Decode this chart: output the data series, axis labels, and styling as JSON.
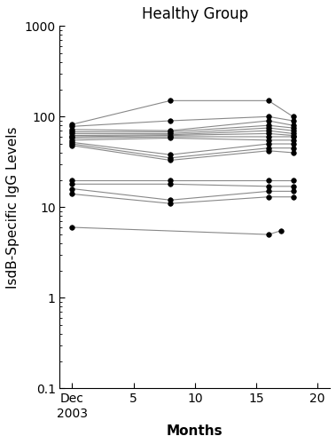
{
  "title": "Healthy Group",
  "xlabel": "Months",
  "ylabel": "IsdB-Specific IgG Levels",
  "xlim": [
    -1,
    21
  ],
  "ylim": [
    0.1,
    1000
  ],
  "background_color": "#ffffff",
  "subjects": [
    {
      "x": [
        0,
        16,
        17
      ],
      "y": [
        6.0,
        5.0,
        5.5
      ]
    },
    {
      "x": [
        0,
        8,
        16,
        18
      ],
      "y": [
        82,
        150,
        150,
        100
      ]
    },
    {
      "x": [
        0,
        8,
        16,
        18
      ],
      "y": [
        78,
        90,
        100,
        90
      ]
    },
    {
      "x": [
        0,
        8,
        16,
        18
      ],
      "y": [
        72,
        70,
        90,
        80
      ]
    },
    {
      "x": [
        0,
        8,
        16,
        18
      ],
      "y": [
        68,
        68,
        80,
        75
      ]
    },
    {
      "x": [
        0,
        8,
        16,
        18
      ],
      "y": [
        65,
        65,
        75,
        70
      ]
    },
    {
      "x": [
        0,
        8,
        16,
        18
      ],
      "y": [
        62,
        63,
        70,
        65
      ]
    },
    {
      "x": [
        0,
        8,
        16,
        18
      ],
      "y": [
        60,
        62,
        65,
        62
      ]
    },
    {
      "x": [
        0,
        8,
        16,
        18
      ],
      "y": [
        58,
        60,
        60,
        60
      ]
    },
    {
      "x": [
        0,
        8,
        16,
        18
      ],
      "y": [
        55,
        58,
        55,
        55
      ]
    },
    {
      "x": [
        0,
        8,
        16,
        18
      ],
      "y": [
        52,
        38,
        50,
        50
      ]
    },
    {
      "x": [
        0,
        8,
        16,
        18
      ],
      "y": [
        50,
        35,
        45,
        45
      ]
    },
    {
      "x": [
        0,
        8,
        16,
        18
      ],
      "y": [
        48,
        33,
        42,
        40
      ]
    },
    {
      "x": [
        0,
        8,
        16,
        18
      ],
      "y": [
        20,
        20,
        20,
        20
      ]
    },
    {
      "x": [
        0,
        8,
        16,
        18
      ],
      "y": [
        18,
        18,
        17,
        17
      ]
    },
    {
      "x": [
        0,
        8,
        16,
        18
      ],
      "y": [
        16,
        12,
        15,
        15
      ]
    },
    {
      "x": [
        0,
        8,
        16,
        18
      ],
      "y": [
        14,
        11,
        13,
        13
      ]
    }
  ],
  "line_color": "#888888",
  "marker_color": "#000000",
  "marker_size": 4,
  "title_fontsize": 12,
  "label_fontsize": 11,
  "tick_fontsize": 10
}
